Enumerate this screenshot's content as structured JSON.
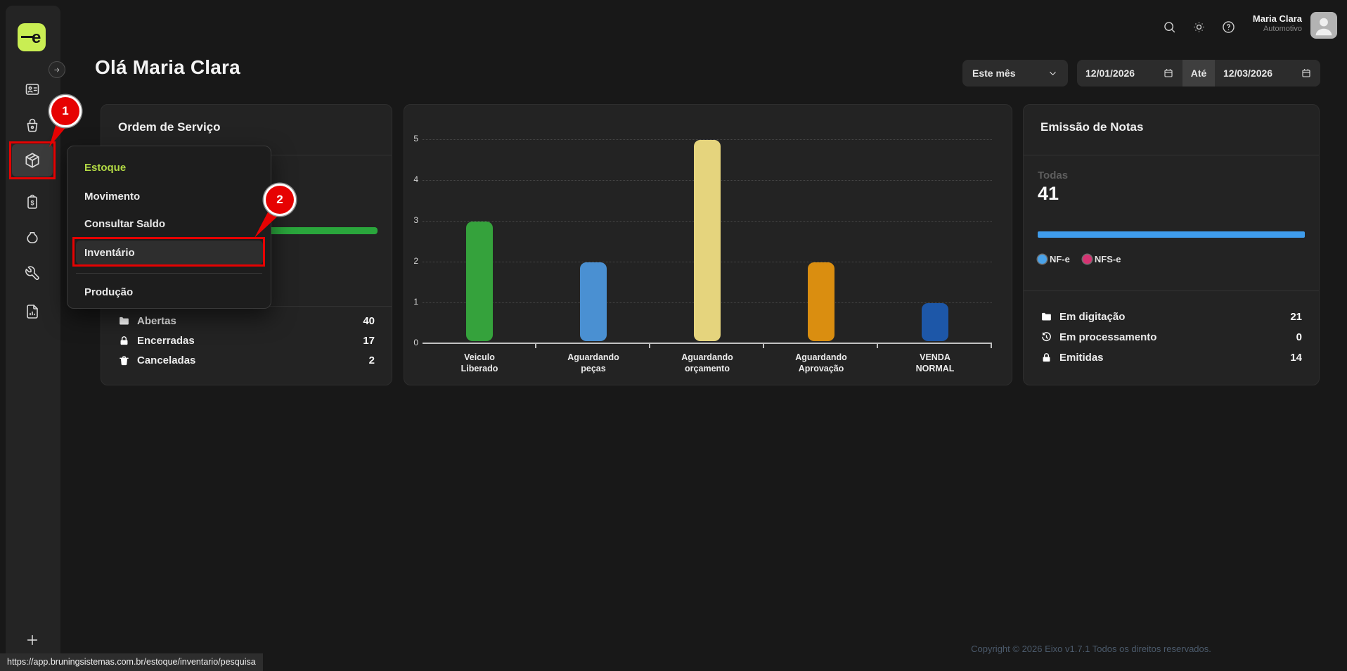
{
  "colors": {
    "accent_lime": "#c9ee53",
    "menu_active_text": "#b2d944",
    "annotation_red": "#e60202",
    "progress_green": "#2aa63c",
    "progress_blue": "#3f9ceb"
  },
  "topbar": {
    "user_name": "Maria Clara",
    "user_role": "Automotivo",
    "icons": [
      "search-icon",
      "brightness-icon",
      "help-icon"
    ]
  },
  "header": {
    "greeting": "Olá Maria Clara",
    "period_select": "Este mês",
    "date_from": "12/01/2026",
    "date_separator": "Até",
    "date_to": "12/03/2026"
  },
  "sidebar": {
    "logo_glyph": "e",
    "nav_icons": [
      "id-card",
      "shopping-basket",
      "package",
      "invoice-clipboard",
      "money-bag",
      "wrench",
      "file-report"
    ],
    "active_icon": "package",
    "add_label": "+"
  },
  "menu": {
    "header": "Estoque",
    "items": [
      "Movimento",
      "Consultar Saldo",
      "Inventário",
      "Produção"
    ],
    "highlighted_item": "Inventário"
  },
  "annotations": {
    "step1": "1",
    "step2": "2"
  },
  "os_card": {
    "title": "Ordem de Serviço",
    "rows": [
      {
        "icon": "folder",
        "label": "Abertas",
        "value": "40"
      },
      {
        "icon": "lock",
        "label": "Encerradas",
        "value": "17"
      },
      {
        "icon": "trash",
        "label": "Canceladas",
        "value": "2"
      }
    ]
  },
  "chart_data": {
    "type": "bar",
    "categories": [
      "Veiculo\nLiberado",
      "Aguardando\npeças",
      "Aguardando\norçamento",
      "Aguardando\nAprovação",
      "VENDA\nNORMAL"
    ],
    "values": [
      3,
      2,
      5,
      2,
      1
    ],
    "colors": [
      "#35a23c",
      "#4a90d2",
      "#e5d47d",
      "#da8e10",
      "#1d57a8"
    ],
    "title": "",
    "xlabel": "",
    "ylabel": "",
    "ylim": [
      0,
      5
    ],
    "yticks": [
      0,
      1,
      2,
      3,
      4,
      5
    ],
    "grid": "horizontal-dotted",
    "legend_position": "none"
  },
  "notas_card": {
    "title": "Emissão de Notas",
    "total_label": "Todas",
    "total_value": "41",
    "legend": [
      {
        "label": "NF-e",
        "color": "#4aa2e8"
      },
      {
        "label": "NFS-e",
        "color": "#d63372"
      }
    ],
    "rows": [
      {
        "icon": "folder",
        "label": "Em digitação",
        "value": "21"
      },
      {
        "icon": "history",
        "label": "Em processamento",
        "value": "0"
      },
      {
        "icon": "lock",
        "label": "Emitidas",
        "value": "14"
      }
    ]
  },
  "footer": {
    "copyright": "Copyright © 2026 Eixo v1.7.1 Todos os direitos reservados."
  },
  "statusbar": {
    "url": "https://app.bruningsistemas.com.br/estoque/inventario/pesquisa"
  }
}
